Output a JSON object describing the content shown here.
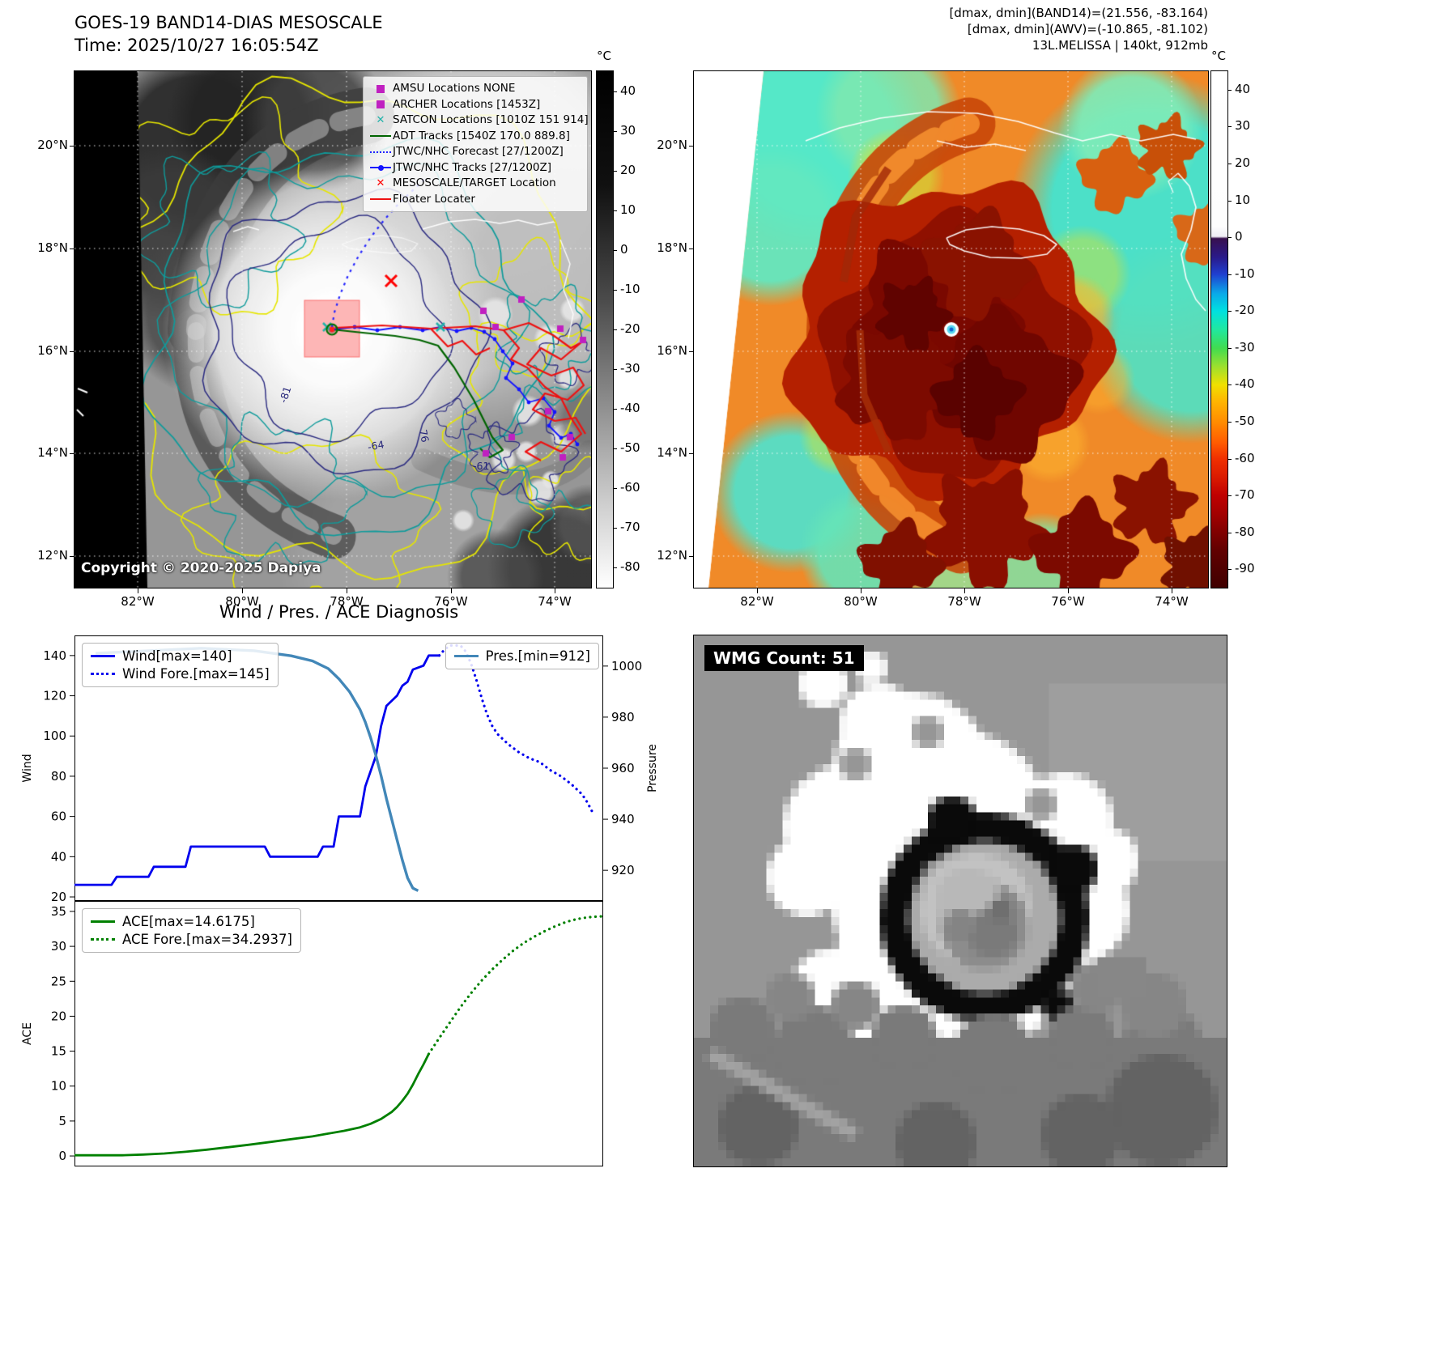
{
  "figure": {
    "top_left_map": {
      "title": "GOES-19 BAND14-DIAS MESOSCALE",
      "subtitle": "Time: 2025/10/27 16:05:54Z",
      "copyright": "Copyright © 2020-2025 Dapiya",
      "legend_items": [
        {
          "label": "AMSU Locations NONE",
          "marker": "square",
          "color": "#c020c0"
        },
        {
          "label": "ARCHER Locations [1453Z]",
          "marker": "square",
          "color": "#c020c0"
        },
        {
          "label": "SATCON Locations [1010Z 151 914]",
          "marker": "x",
          "color": "#20b2aa"
        },
        {
          "label": "ADT Tracks [1540Z 170.0 889.8]",
          "marker": "line",
          "color": "#006400"
        },
        {
          "label": "JTWC/NHC Forecast [27/1200Z]",
          "marker": "dotted",
          "color": "#2222ff"
        },
        {
          "label": "JTWC/NHC Tracks [27/1200Z]",
          "marker": "line-marker",
          "color": "#1414ff"
        },
        {
          "label": "MESOSCALE/TARGET Location",
          "marker": "x",
          "color": "#ff0000"
        },
        {
          "label": "Floater Locater",
          "marker": "line",
          "color": "#ee1111"
        }
      ],
      "x_tick_labels": [
        "82°W",
        "80°W",
        "78°W",
        "76°W",
        "74°W"
      ],
      "y_tick_labels": [
        "20°N",
        "18°N",
        "16°N",
        "14°N",
        "12°N"
      ],
      "contour_labels": [
        "-81",
        "-64",
        "76",
        "-61"
      ],
      "colorbar": {
        "unit": "°C",
        "ticks": [
          40,
          30,
          20,
          10,
          0,
          -10,
          -20,
          -30,
          -40,
          -50,
          -60,
          -70,
          -80
        ]
      }
    },
    "top_right_map": {
      "header_lines": [
        "[dmax, dmin](BAND14)=(21.556, -83.164)",
        "[dmax, dmin](AWV)=(-10.865, -81.102)",
        "13L.MELISSA | 140kt, 912mb"
      ],
      "x_tick_labels": [
        "82°W",
        "80°W",
        "78°W",
        "76°W",
        "74°W"
      ],
      "y_tick_labels": [
        "20°N",
        "18°N",
        "16°N",
        "14°N",
        "12°N"
      ],
      "colorbar": {
        "unit": "°C",
        "ticks": [
          40,
          30,
          20,
          10,
          0,
          -10,
          -20,
          -30,
          -40,
          -50,
          -60,
          -70,
          -80,
          -90
        ]
      }
    },
    "bottom_right_panel": {
      "wmg_label": "WMG Count: 51"
    }
  },
  "chart_data": [
    {
      "type": "line",
      "name": "wind-pressure-chart",
      "title": "Wind / Pres. / ACE Diagnosis",
      "ylabel_left": "Wind",
      "ylabel_right": "Pressure",
      "y_ticks_left": [
        20,
        40,
        60,
        80,
        100,
        120,
        140
      ],
      "y_ticks_right": [
        920,
        940,
        960,
        980,
        1000
      ],
      "ylim_left": [
        18,
        150
      ],
      "ylim_right": [
        908,
        1012
      ],
      "xlim": [
        0,
        100
      ],
      "legend_left": [
        "Wind[max=140]",
        "Wind Fore.[max=145]"
      ],
      "legend_right": [
        "Pres.[min=912]"
      ],
      "series": [
        {
          "name": "Wind",
          "style": "solid",
          "color": "#0000ee",
          "axis": "left",
          "points": [
            [
              0,
              26
            ],
            [
              7,
              26
            ],
            [
              8,
              30
            ],
            [
              14,
              30
            ],
            [
              15,
              35
            ],
            [
              21,
              35
            ],
            [
              22,
              45
            ],
            [
              36,
              45
            ],
            [
              37,
              40
            ],
            [
              46,
              40
            ],
            [
              47,
              45
            ],
            [
              49,
              45
            ],
            [
              50,
              60
            ],
            [
              54,
              60
            ],
            [
              55,
              75
            ],
            [
              57,
              90
            ],
            [
              58,
              105
            ],
            [
              59,
              115
            ],
            [
              61,
              120
            ],
            [
              62,
              125
            ],
            [
              63,
              127
            ],
            [
              64,
              133
            ],
            [
              66,
              135
            ],
            [
              67,
              140
            ],
            [
              69,
              140
            ]
          ]
        },
        {
          "name": "Wind Fore.",
          "style": "dotted",
          "color": "#0000ee",
          "axis": "left",
          "points": [
            [
              69,
              140
            ],
            [
              70,
              143
            ],
            [
              71,
              145
            ],
            [
              73,
              145
            ],
            [
              74,
              142
            ],
            [
              75,
              136
            ],
            [
              76,
              128
            ],
            [
              77,
              119
            ],
            [
              78,
              111
            ],
            [
              79,
              105
            ],
            [
              80,
              101
            ],
            [
              82,
              96
            ],
            [
              84,
              92
            ],
            [
              86,
              89
            ],
            [
              88,
              87
            ],
            [
              90,
              83
            ],
            [
              92,
              80
            ],
            [
              94,
              76
            ],
            [
              96,
              71
            ],
            [
              97,
              67
            ],
            [
              98,
              62
            ]
          ]
        },
        {
          "name": "Pres.",
          "style": "solid",
          "color": "#4287b8",
          "axis": "right",
          "points": [
            [
              4,
              1005
            ],
            [
              14,
              1006
            ],
            [
              24,
              1007
            ],
            [
              34,
              1006
            ],
            [
              41,
              1004
            ],
            [
              45,
              1002
            ],
            [
              48,
              999
            ],
            [
              50,
              995
            ],
            [
              52,
              990
            ],
            [
              54,
              983
            ],
            [
              55,
              978
            ],
            [
              56,
              972
            ],
            [
              57,
              965
            ],
            [
              58,
              957
            ],
            [
              59,
              948
            ],
            [
              60,
              940
            ],
            [
              61,
              932
            ],
            [
              62,
              924
            ],
            [
              63,
              917
            ],
            [
              64,
              913
            ],
            [
              65,
              912
            ]
          ]
        }
      ]
    },
    {
      "type": "line",
      "name": "ace-chart",
      "ylabel_left": "ACE",
      "y_ticks_left": [
        0,
        5,
        10,
        15,
        20,
        25,
        30,
        35
      ],
      "ylim_left": [
        -1.5,
        36.5
      ],
      "xlim": [
        0,
        100
      ],
      "legend_left": [
        "ACE[max=14.6175]",
        "ACE Fore.[max=34.2937]"
      ],
      "series": [
        {
          "name": "ACE",
          "style": "solid",
          "color": "#008000",
          "axis": "left",
          "points": [
            [
              0,
              0.1
            ],
            [
              9,
              0.1
            ],
            [
              13,
              0.2
            ],
            [
              17,
              0.35
            ],
            [
              21,
              0.6
            ],
            [
              25,
              0.9
            ],
            [
              29,
              1.25
            ],
            [
              33,
              1.6
            ],
            [
              37,
              2.0
            ],
            [
              41,
              2.4
            ],
            [
              45,
              2.8
            ],
            [
              48,
              3.2
            ],
            [
              51,
              3.6
            ],
            [
              54,
              4.1
            ],
            [
              56,
              4.6
            ],
            [
              58,
              5.3
            ],
            [
              60,
              6.3
            ],
            [
              61,
              7.0
            ],
            [
              62,
              7.9
            ],
            [
              63,
              8.9
            ],
            [
              64,
              10.2
            ],
            [
              65,
              11.7
            ],
            [
              66,
              13.1
            ],
            [
              67,
              14.6
            ]
          ]
        },
        {
          "name": "ACE Fore.",
          "style": "dotted",
          "color": "#008000",
          "axis": "left",
          "points": [
            [
              67,
              14.6
            ],
            [
              69,
              16.9
            ],
            [
              71,
              19.1
            ],
            [
              73,
              21.3
            ],
            [
              75,
              23.3
            ],
            [
              77,
              25.1
            ],
            [
              79,
              26.7
            ],
            [
              81,
              28.1
            ],
            [
              83,
              29.4
            ],
            [
              85,
              30.5
            ],
            [
              87,
              31.4
            ],
            [
              89,
              32.2
            ],
            [
              91,
              32.9
            ],
            [
              93,
              33.5
            ],
            [
              95,
              33.9
            ],
            [
              97,
              34.15
            ],
            [
              99,
              34.28
            ],
            [
              100,
              34.29
            ]
          ]
        }
      ]
    }
  ]
}
